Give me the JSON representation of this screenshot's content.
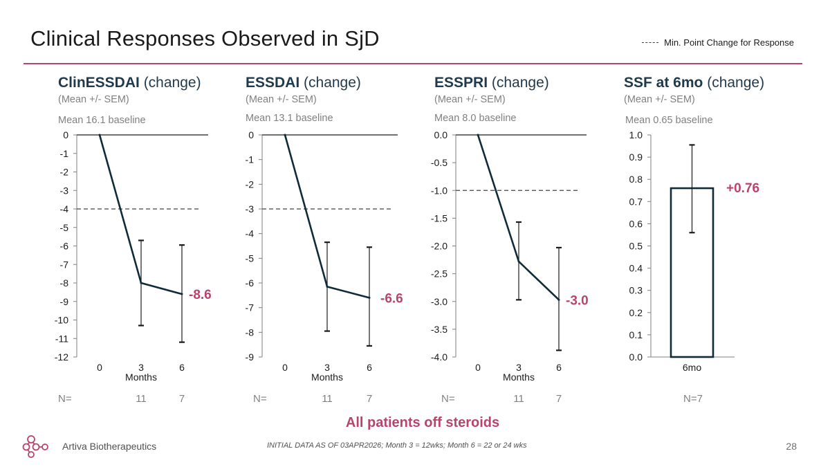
{
  "title": "Clinical Responses Observed in SjD",
  "legend_label": "Min. Point Change for Response",
  "footer": {
    "banner": "All patients off steroids",
    "company": "Artiva Biotherapeutics",
    "note": "INITIAL DATA AS OF 03APR2026; Month 3 = 12wks; Month 6 = 22 or 24 wks",
    "page": "28"
  },
  "colors": {
    "accent": "#b8446e",
    "line": "#0f2b3a",
    "text": "#404040"
  },
  "panels": [
    {
      "name": "ClinESSDAI",
      "suffix": " (change)",
      "stat": "(Mean +/- SEM)",
      "baseline": "Mean 16.1 baseline"
    },
    {
      "name": "ESSDAI",
      "suffix": " (change)",
      "stat": "(Mean +/- SEM)",
      "baseline": "Mean 13.1 baseline"
    },
    {
      "name": "ESSPRI",
      "suffix": " (change)",
      "stat": "(Mean +/- SEM)",
      "baseline": "Mean 8.0 baseline"
    },
    {
      "name": "SSF at 6mo",
      "suffix": " (change)",
      "stat": "(Mean +/- SEM)",
      "baseline": "Mean 0.65 baseline"
    }
  ],
  "chart_data": [
    {
      "type": "line",
      "x": [
        0,
        3,
        6
      ],
      "xticks": [
        "0",
        "3",
        "6"
      ],
      "xlabel": "Months",
      "yticks": [
        "0",
        "-1",
        "-2",
        "-3",
        "-4",
        "-5",
        "-6",
        "-7",
        "-8",
        "-9",
        "-10",
        "-11",
        "-12"
      ],
      "ylim": [
        -12,
        0
      ],
      "y": [
        0,
        -8.0,
        -8.6
      ],
      "err_low": [
        null,
        -10.3,
        -11.2
      ],
      "err_high": [
        null,
        -5.7,
        -5.95
      ],
      "threshold": -4,
      "end_label": "-8.6",
      "n_label": "N=",
      "n_values": [
        "",
        "11",
        "7"
      ]
    },
    {
      "type": "line",
      "x": [
        0,
        3,
        6
      ],
      "xticks": [
        "0",
        "3",
        "6"
      ],
      "xlabel": "Months",
      "yticks": [
        "0",
        "-1",
        "-2",
        "-3",
        "-4",
        "-5",
        "-6",
        "-7",
        "-8",
        "-9"
      ],
      "ylim": [
        -9,
        0
      ],
      "y": [
        0,
        -6.15,
        -6.6
      ],
      "err_low": [
        null,
        -7.95,
        -8.55
      ],
      "err_high": [
        null,
        -4.35,
        -4.55
      ],
      "threshold": -3,
      "end_label": "-6.6",
      "n_label": "N=",
      "n_values": [
        "",
        "11",
        "7"
      ]
    },
    {
      "type": "line",
      "x": [
        0,
        3,
        6
      ],
      "xticks": [
        "0",
        "3",
        "6"
      ],
      "xlabel": "Months",
      "yticks": [
        "0.0",
        "-0.5",
        "-1.0",
        "-1.5",
        "-2.0",
        "-2.5",
        "-3.0",
        "-3.5",
        "-4.0"
      ],
      "ylim": [
        -4,
        0
      ],
      "y": [
        0,
        -2.28,
        -2.97
      ],
      "err_low": [
        null,
        -2.97,
        -3.88
      ],
      "err_high": [
        null,
        -1.57,
        -2.03
      ],
      "threshold": -1,
      "end_label": "-3.0",
      "n_label": "N=",
      "n_values": [
        "",
        "11",
        "7"
      ]
    },
    {
      "type": "bar",
      "categories": [
        "6mo"
      ],
      "values": [
        0.76
      ],
      "err_low": [
        0.56
      ],
      "err_high": [
        0.955
      ],
      "yticks": [
        "1.0",
        "0.9",
        "0.8",
        "0.7",
        "0.6",
        "0.5",
        "0.4",
        "0.3",
        "0.2",
        "0.1",
        "0.0"
      ],
      "ylim": [
        0,
        1
      ],
      "end_label": "+0.76",
      "n_label": "N=7"
    }
  ]
}
